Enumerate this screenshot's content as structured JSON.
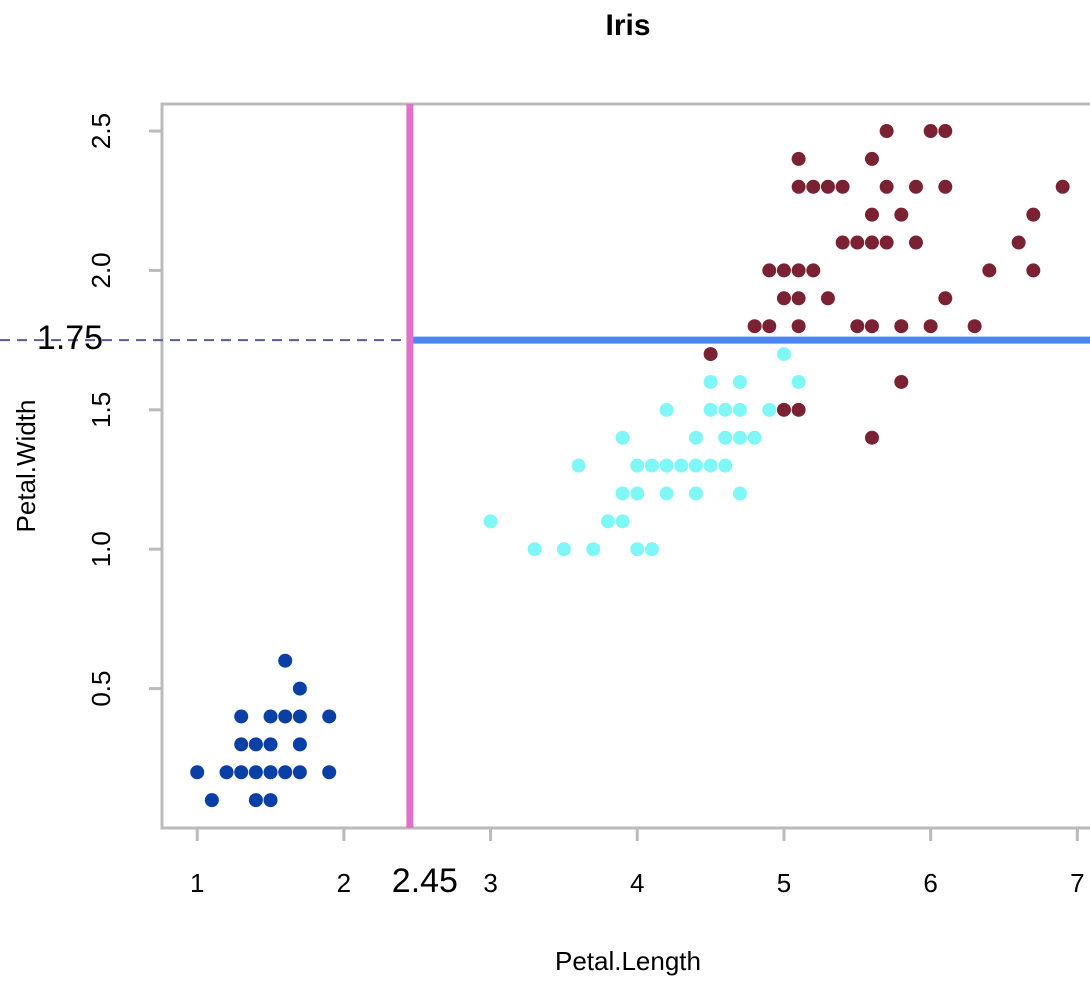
{
  "chart_data": {
    "type": "scatter",
    "title": "Iris",
    "x_label": "Petal.Length",
    "y_label": "Petal.Width",
    "xlim": [
      0.76,
      7.1
    ],
    "ylim": [
      0.0,
      2.597
    ],
    "xticks": [
      1,
      2,
      3,
      4,
      5,
      6,
      7
    ],
    "yticks": [
      0.5,
      {
        "value": 1.0,
        "label": "1.0"
      },
      1.5,
      {
        "value": 2.0,
        "label": "2.0"
      },
      2.5
    ],
    "series": [
      {
        "color": "#0a3fa6",
        "x": [
          1.0,
          1.1,
          1.2,
          1.3,
          1.3,
          1.3,
          1.4,
          1.4,
          1.4,
          1.5,
          1.5,
          1.5,
          1.5,
          1.6,
          1.6,
          1.6,
          1.7,
          1.7,
          1.7,
          1.7,
          1.9,
          1.9
        ],
        "y": [
          0.2,
          0.1,
          0.2,
          0.2,
          0.3,
          0.4,
          0.1,
          0.2,
          0.3,
          0.1,
          0.2,
          0.3,
          0.4,
          0.2,
          0.4,
          0.6,
          0.2,
          0.3,
          0.4,
          0.5,
          0.2,
          0.4
        ]
      },
      {
        "color": "#7ff7f7",
        "x": [
          3.0,
          3.3,
          3.5,
          3.6,
          3.7,
          3.8,
          3.9,
          3.9,
          3.9,
          4.0,
          4.0,
          4.0,
          4.1,
          4.1,
          4.2,
          4.2,
          4.2,
          4.3,
          4.4,
          4.4,
          4.4,
          4.5,
          4.5,
          4.5,
          4.6,
          4.6,
          4.6,
          4.7,
          4.7,
          4.7,
          4.7,
          4.8,
          4.9,
          5.0,
          5.1
        ],
        "y": [
          1.1,
          1.0,
          1.0,
          1.3,
          1.0,
          1.1,
          1.1,
          1.2,
          1.4,
          1.0,
          1.2,
          1.3,
          1.0,
          1.3,
          1.2,
          1.3,
          1.5,
          1.3,
          1.2,
          1.3,
          1.4,
          1.3,
          1.5,
          1.6,
          1.3,
          1.4,
          1.5,
          1.2,
          1.4,
          1.5,
          1.6,
          1.4,
          1.5,
          1.7,
          1.6
        ]
      },
      {
        "color": "#7a2233",
        "x": [
          5.6,
          5.0,
          5.1,
          5.8,
          4.5,
          4.8,
          4.9,
          5.1,
          5.5,
          5.6,
          5.8,
          6.0,
          6.3,
          5.0,
          5.1,
          5.3,
          6.1,
          4.9,
          5.0,
          5.1,
          5.2,
          6.4,
          6.7,
          5.4,
          5.5,
          5.6,
          5.7,
          5.9,
          6.6,
          5.6,
          5.8,
          6.7,
          5.1,
          5.2,
          5.3,
          5.4,
          5.7,
          5.9,
          6.1,
          6.9,
          5.1,
          5.6,
          5.7,
          6.0,
          6.1
        ],
        "y": [
          1.4,
          1.5,
          1.5,
          1.6,
          1.7,
          1.8,
          1.8,
          1.8,
          1.8,
          1.8,
          1.8,
          1.8,
          1.8,
          1.9,
          1.9,
          1.9,
          1.9,
          2.0,
          2.0,
          2.0,
          2.0,
          2.0,
          2.0,
          2.1,
          2.1,
          2.1,
          2.1,
          2.1,
          2.1,
          2.2,
          2.2,
          2.2,
          2.3,
          2.3,
          2.3,
          2.3,
          2.3,
          2.3,
          2.3,
          2.3,
          2.4,
          2.4,
          2.5,
          2.5,
          2.5
        ]
      }
    ],
    "vline": {
      "value": 2.45,
      "color": "#e46fc8"
    },
    "hline": {
      "value": 1.75,
      "color": "#4a86f0"
    }
  }
}
